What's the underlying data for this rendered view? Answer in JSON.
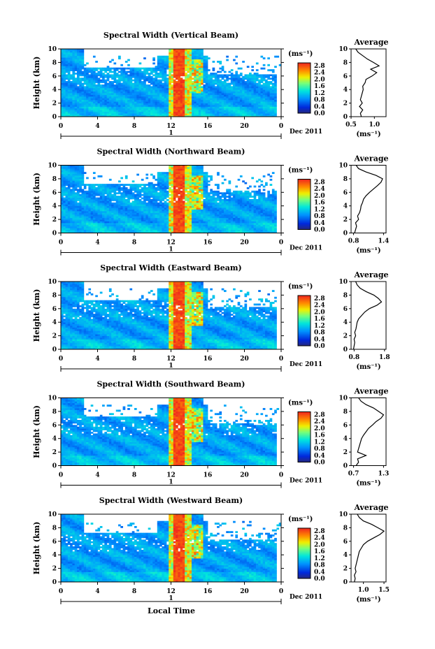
{
  "figure": {
    "xlabel": "Local Time",
    "day_label": "1",
    "month_label": "Dec 2011"
  },
  "chart_data": [
    {
      "type": "heatmap",
      "title": "Spectral Width (Vertical Beam)",
      "ylabel": "Height (km)",
      "xlim": [
        0,
        24
      ],
      "ylim": [
        0,
        10
      ],
      "xticks": [
        "0",
        "4",
        "8",
        "12",
        "16",
        "20",
        "0"
      ],
      "yticks": [
        "0",
        "2",
        "4",
        "6",
        "8",
        "10"
      ],
      "colorbar": {
        "unit": "(ms⁻¹)",
        "ticks": [
          "0.0",
          "0.4",
          "0.8",
          "1.2",
          "1.6",
          "2.0",
          "2.4",
          "2.8"
        ]
      },
      "profile": {
        "title": "Average",
        "xlabel": "(ms⁻¹)",
        "xlim": [
          0.5,
          1.25
        ],
        "xticks": [
          "0.5",
          "1.0"
        ],
        "heights": [
          0,
          0.5,
          1,
          1.5,
          2,
          2.5,
          3,
          3.5,
          4,
          4.5,
          5,
          5.5,
          6,
          6.5,
          7,
          7.5,
          8,
          8.5,
          9,
          9.5,
          10
        ],
        "values": [
          0.72,
          0.7,
          0.75,
          0.68,
          0.74,
          0.7,
          0.72,
          0.74,
          0.76,
          0.75,
          0.8,
          0.82,
          0.95,
          1.05,
          0.92,
          1.1,
          0.98,
          0.85,
          0.75,
          0.65,
          0.6
        ]
      }
    },
    {
      "type": "heatmap",
      "title": "Spectral Width (Northward Beam)",
      "ylabel": "Height (km)",
      "xlim": [
        0,
        24
      ],
      "ylim": [
        0,
        10
      ],
      "xticks": [
        "0",
        "4",
        "8",
        "12",
        "16",
        "20",
        "0"
      ],
      "yticks": [
        "0",
        "2",
        "4",
        "6",
        "8",
        "10"
      ],
      "colorbar": {
        "unit": "(ms⁻¹)",
        "ticks": [
          "0.0",
          "0.4",
          "0.8",
          "1.2",
          "1.6",
          "2.0",
          "2.4",
          "2.8"
        ]
      },
      "profile": {
        "title": "Average",
        "xlabel": "(ms⁻¹)",
        "xlim": [
          0.75,
          1.45
        ],
        "xticks": [
          "0.8",
          "1.4"
        ],
        "heights": [
          0,
          0.5,
          1,
          1.5,
          2,
          2.5,
          3,
          3.5,
          4,
          4.5,
          5,
          5.5,
          6,
          6.5,
          7,
          7.5,
          8,
          8.5,
          9,
          9.5,
          10
        ],
        "values": [
          0.82,
          0.84,
          0.86,
          0.84,
          0.9,
          0.88,
          0.92,
          0.94,
          0.95,
          0.98,
          1.0,
          1.05,
          1.12,
          1.2,
          1.28,
          1.35,
          1.38,
          1.25,
          1.05,
          0.9,
          0.85
        ]
      }
    },
    {
      "type": "heatmap",
      "title": "Spectral Width (Eastward Beam)",
      "ylabel": "Height (km)",
      "xlim": [
        0,
        24
      ],
      "ylim": [
        0,
        10
      ],
      "xticks": [
        "0",
        "4",
        "8",
        "12",
        "16",
        "20",
        "0"
      ],
      "yticks": [
        "0",
        "2",
        "4",
        "6",
        "8",
        "10"
      ],
      "colorbar": {
        "unit": "(ms⁻¹)",
        "ticks": [
          "0.0",
          "0.4",
          "0.8",
          "1.2",
          "1.6",
          "2.0",
          "2.4",
          "2.8"
        ]
      },
      "profile": {
        "title": "Average",
        "xlabel": "(ms⁻¹)",
        "xlim": [
          0.7,
          1.85
        ],
        "xticks": [
          "0.8",
          "1.8"
        ],
        "heights": [
          0,
          0.5,
          1,
          1.5,
          2,
          2.5,
          3,
          3.5,
          4,
          4.5,
          5,
          5.5,
          6,
          6.5,
          7,
          7.5,
          8,
          8.5,
          9,
          9.5,
          10
        ],
        "values": [
          0.78,
          0.8,
          0.82,
          0.8,
          0.85,
          0.82,
          0.86,
          0.88,
          0.9,
          0.95,
          1.05,
          1.15,
          1.3,
          1.55,
          1.7,
          1.6,
          1.45,
          1.2,
          1.0,
          0.9,
          0.85
        ]
      }
    },
    {
      "type": "heatmap",
      "title": "Spectral Width (Southward Beam)",
      "ylabel": "Height (km)",
      "xlim": [
        0,
        24
      ],
      "ylim": [
        0,
        10
      ],
      "xticks": [
        "0",
        "4",
        "8",
        "12",
        "16",
        "20",
        "0"
      ],
      "yticks": [
        "0",
        "2",
        "4",
        "6",
        "8",
        "10"
      ],
      "colorbar": {
        "unit": "(ms⁻¹)",
        "ticks": [
          "0.0",
          "0.4",
          "0.8",
          "1.2",
          "1.6",
          "2.0",
          "2.4",
          "2.8"
        ]
      },
      "profile": {
        "title": "Average",
        "xlabel": "(ms⁻¹)",
        "xlim": [
          0.65,
          1.35
        ],
        "xticks": [
          "0.7",
          "1.3"
        ],
        "heights": [
          0,
          0.5,
          1,
          1.5,
          2,
          2.5,
          3,
          3.5,
          4,
          4.5,
          5,
          5.5,
          6,
          6.5,
          7,
          7.5,
          8,
          8.5,
          9,
          9.5,
          10
        ],
        "values": [
          0.75,
          0.8,
          0.78,
          0.95,
          0.78,
          0.8,
          0.82,
          0.84,
          0.86,
          0.9,
          0.95,
          1.0,
          1.08,
          1.15,
          1.25,
          1.3,
          1.2,
          1.1,
          0.95,
          0.85,
          0.8
        ]
      }
    },
    {
      "type": "heatmap",
      "title": "Spectral Width (Westward Beam)",
      "ylabel": "Height (km)",
      "xlim": [
        0,
        24
      ],
      "ylim": [
        0,
        10
      ],
      "xticks": [
        "0",
        "4",
        "8",
        "12",
        "16",
        "20",
        "0"
      ],
      "yticks": [
        "0",
        "2",
        "4",
        "6",
        "8",
        "10"
      ],
      "colorbar": {
        "unit": "(ms⁻¹)",
        "ticks": [
          "0.0",
          "0.4",
          "0.8",
          "1.2",
          "1.6",
          "2.0",
          "2.4",
          "2.8"
        ]
      },
      "profile": {
        "title": "Average",
        "xlabel": "(ms⁻¹)",
        "xlim": [
          0.7,
          1.55
        ],
        "xticks": [
          "1.0",
          "1.5"
        ],
        "heights": [
          0,
          0.5,
          1,
          1.5,
          2,
          2.5,
          3,
          3.5,
          4,
          4.5,
          5,
          5.5,
          6,
          6.5,
          7,
          7.5,
          8,
          8.5,
          9,
          9.5,
          10
        ],
        "values": [
          0.78,
          0.8,
          0.78,
          0.82,
          0.8,
          0.82,
          0.84,
          0.86,
          0.88,
          0.9,
          0.95,
          1.0,
          1.1,
          1.25,
          1.4,
          1.5,
          1.35,
          1.2,
          1.0,
          0.9,
          0.85
        ]
      }
    }
  ]
}
